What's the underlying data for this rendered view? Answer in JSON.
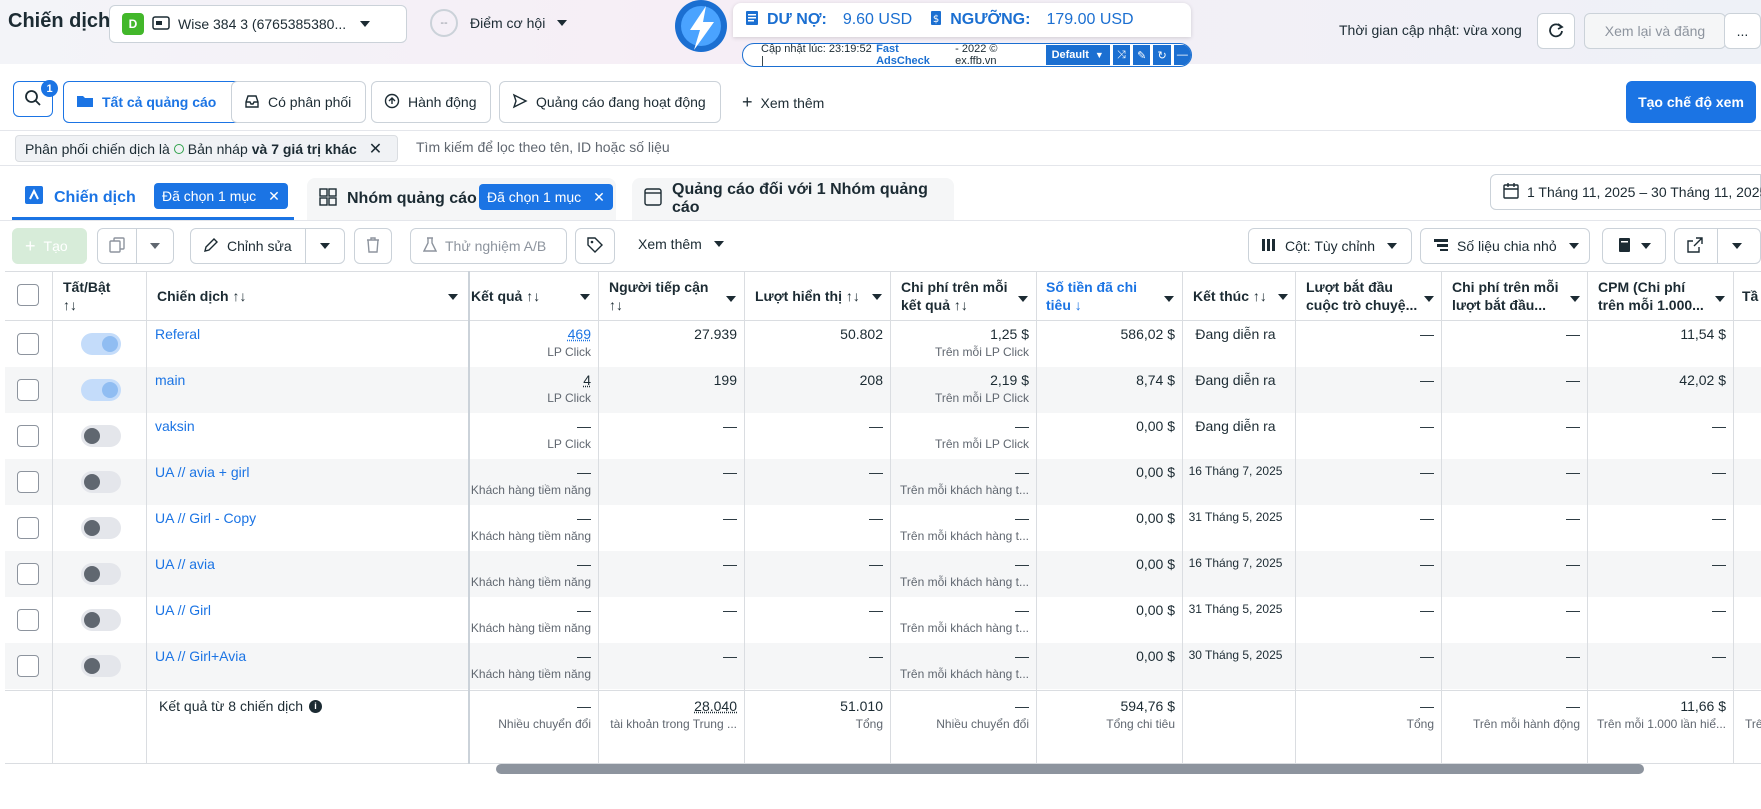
{
  "header": {
    "title": "Chiến dịch",
    "account_avatar": "D",
    "account_name": "Wise 384 3 (6765385380...",
    "opportunity_label": "Điểm cơ hội",
    "update_time_label": "Thời gian cập nhật: vừa xong",
    "review_publish": "Xem lại và đăng",
    "more": "..."
  },
  "adscheck": {
    "debt_label": "DƯ NỢ:",
    "debt_value": "9.60 USD",
    "threshold_label": "NGƯỠNG:",
    "threshold_value": "179.00 USD",
    "updated_prefix": "Cập nhật lúc: 23:19:52 |",
    "brand": "Fast AdsCheck",
    "credit": "- 2022 © ex.ffb.vn",
    "default_label": "Default"
  },
  "toolbar": {
    "search_badge": "1",
    "all_ads": "Tất cả quảng cáo",
    "has_delivery": "Có phân phối",
    "actions": "Hành động",
    "active_ads": "Quảng cáo đang hoạt động",
    "see_more": "Xem thêm",
    "create_view": "Tạo chế độ xem"
  },
  "filter": {
    "prefix": "Phân phối chiến dịch là",
    "value": "Bản nháp",
    "suffix": "và 7 giá trị khác",
    "search_placeholder": "Tìm kiếm để lọc theo tên, ID hoặc số liệu"
  },
  "levels": {
    "campaign": "Chiến dịch",
    "campaign_chip": "Đã chọn 1 mục",
    "adset": "Nhóm quảng cáo",
    "adset_chip": "Đã chọn 1 mục",
    "ads": "Quảng cáo đối với 1 Nhóm quảng cáo",
    "date_range": "1 Tháng 11, 2025 – 30 Tháng 11, 2025"
  },
  "actions_bar": {
    "create": "Tạo",
    "edit": "Chỉnh sửa",
    "ab_test": "Thử nghiệm A/B",
    "see_more": "Xem thêm",
    "columns": "Cột: Tùy chỉnh",
    "breakdown": "Số liệu chia nhỏ"
  },
  "columns": {
    "toggle": "Tất/Bật",
    "toggle_sort": "↑↓",
    "campaign": "Chiến dịch ↑↓",
    "results": "Kết quả ↑↓",
    "reach": "Người tiếp cận",
    "reach_sort": "↑↓",
    "impressions": "Lượt hiển thị ↑↓",
    "cpr": "Chi phí trên mỗi",
    "cpr2": "kết quả ↑↓",
    "spent": "Số tiền đã chi",
    "spent2": "tiêu ↓",
    "end": "Kết thúc ↑↓",
    "conv": "Lượt bắt đầu",
    "conv2": "cuộc trò chuyệ...",
    "cpconv": "Chi phí trên mỗi",
    "cpconv2": "lượt bắt đầu...",
    "cpm": "CPM (Chi phí",
    "cpm2": "trên mỗi 1.000...",
    "extra": "Tầ"
  },
  "rows": [
    {
      "name": "Referal",
      "on": true,
      "result": "469",
      "result_sub": "LP Click",
      "reach": "27.939",
      "imp": "50.802",
      "cpr": "1,25 $",
      "cpr_sub": "Trên mỗi LP Click",
      "spent": "586,02 $",
      "end": "Đang diễn ra",
      "conv": "—",
      "cpconv": "—",
      "cpm": "11,54 $"
    },
    {
      "name": "main",
      "on": true,
      "result": "4",
      "result_sub": "LP Click",
      "reach": "199",
      "imp": "208",
      "cpr": "2,19 $",
      "cpr_sub": "Trên mỗi LP Click",
      "spent": "8,74 $",
      "end": "Đang diễn ra",
      "conv": "—",
      "cpconv": "—",
      "cpm": "42,02 $"
    },
    {
      "name": "vaksin",
      "on": false,
      "result": "—",
      "result_sub": "LP Click",
      "reach": "—",
      "imp": "—",
      "cpr": "—",
      "cpr_sub": "Trên mỗi LP Click",
      "spent": "0,00 $",
      "end": "Đang diễn ra",
      "conv": "—",
      "cpconv": "—",
      "cpm": "—"
    },
    {
      "name": "UA // avia + girl",
      "on": false,
      "result": "—",
      "result_sub": "Khách hàng tiềm năng",
      "reach": "—",
      "imp": "—",
      "cpr": "—",
      "cpr_sub": "Trên mỗi khách hàng t...",
      "spent": "0,00 $",
      "end": "16 Tháng 7, 2025",
      "conv": "—",
      "cpconv": "—",
      "cpm": "—"
    },
    {
      "name": "UA // Girl - Copy",
      "on": false,
      "result": "—",
      "result_sub": "Khách hàng tiềm năng",
      "reach": "—",
      "imp": "—",
      "cpr": "—",
      "cpr_sub": "Trên mỗi khách hàng t...",
      "spent": "0,00 $",
      "end": "31 Tháng 5, 2025",
      "conv": "—",
      "cpconv": "—",
      "cpm": "—"
    },
    {
      "name": "UA // avia",
      "on": false,
      "result": "—",
      "result_sub": "Khách hàng tiềm năng",
      "reach": "—",
      "imp": "—",
      "cpr": "—",
      "cpr_sub": "Trên mỗi khách hàng t...",
      "spent": "0,00 $",
      "end": "16 Tháng 7, 2025",
      "conv": "—",
      "cpconv": "—",
      "cpm": "—"
    },
    {
      "name": "UA // Girl",
      "on": false,
      "result": "—",
      "result_sub": "Khách hàng tiềm năng",
      "reach": "—",
      "imp": "—",
      "cpr": "—",
      "cpr_sub": "Trên mỗi khách hàng t...",
      "spent": "0,00 $",
      "end": "31 Tháng 5, 2025",
      "conv": "—",
      "cpconv": "—",
      "cpm": "—"
    },
    {
      "name": "UA // Girl+Avia",
      "on": false,
      "result": "—",
      "result_sub": "Khách hàng tiềm năng",
      "reach": "—",
      "imp": "—",
      "cpr": "—",
      "cpr_sub": "Trên mỗi khách hàng t...",
      "spent": "0,00 $",
      "end": "30 Tháng 5, 2025",
      "conv": "—",
      "cpconv": "—",
      "cpm": "—"
    }
  ],
  "totals": {
    "label": "Kết quả từ 8 chiến dịch",
    "result": "—",
    "result_sub": "Nhiều chuyển đổi",
    "reach": "28.040",
    "reach_sub": "tài khoản trong Trung ...",
    "imp": "51.010",
    "imp_sub": "Tổng",
    "cpr": "—",
    "cpr_sub": "Nhiều chuyển đổi",
    "spent": "594,76 $",
    "spent_sub": "Tổng chi tiêu",
    "conv": "—",
    "conv_sub": "Tổng",
    "cpconv": "—",
    "cpconv_sub": "Trên mỗi hành động",
    "cpm": "11,66 $",
    "cpm_sub": "Trên mỗi 1.000 lần hiể...",
    "extra_sub": "Trê"
  }
}
